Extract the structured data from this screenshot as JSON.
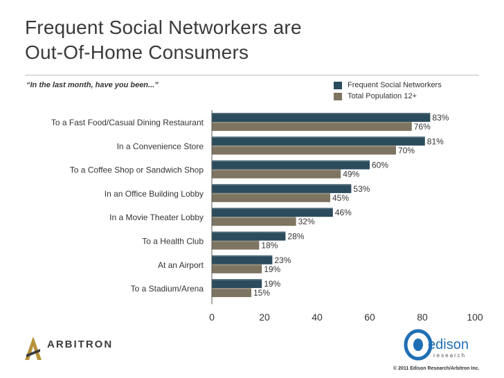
{
  "header": {
    "title_line1": "Frequent Social Networkers are",
    "title_line2": "Out-Of-Home Consumers",
    "subtitle": "“In the last month, have you been...”"
  },
  "colors": {
    "frequent": "#2b4c5c",
    "total": "#7d7461",
    "axis": "#555555"
  },
  "chart_data": {
    "type": "bar",
    "orientation": "horizontal",
    "categories": [
      "To a Fast Food/Casual Dining Restaurant",
      "In a Convenience Store",
      "To a Coffee Shop or Sandwich Shop",
      "In an Office Building Lobby",
      "In a Movie Theater Lobby",
      "To a Health Club",
      "At an Airport",
      "To a Stadium/Arena"
    ],
    "series": [
      {
        "name": "Frequent Social Networkers",
        "values": [
          83,
          81,
          60,
          53,
          46,
          28,
          23,
          19
        ]
      },
      {
        "name": "Total Population 12+",
        "values": [
          76,
          70,
          49,
          45,
          32,
          18,
          19,
          15
        ]
      }
    ],
    "value_suffix": "%",
    "xlim": [
      0,
      100
    ],
    "xticks": [
      "0",
      "20",
      "40",
      "60",
      "80",
      "100"
    ],
    "legend_position": "top-right",
    "grid": false
  },
  "footer": {
    "arbitron_logo_text": "ARBITRON",
    "edison_logo_text": "edison",
    "edison_logo_sub": "research",
    "copyright": "© 2011 Edison Research/Arbitron Inc."
  }
}
